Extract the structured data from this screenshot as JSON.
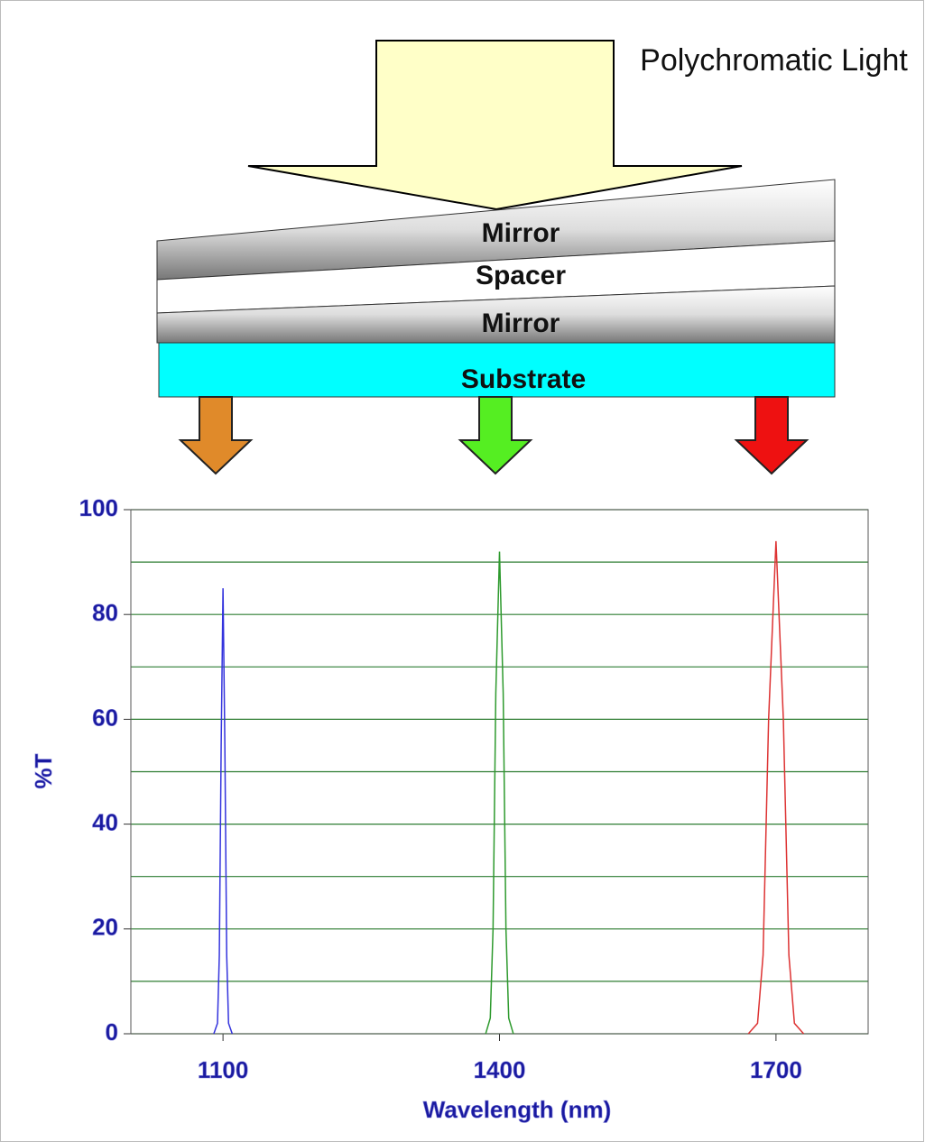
{
  "diagram": {
    "light_label": "Polychromatic Light",
    "layers": [
      "Mirror",
      "Spacer",
      "Mirror",
      "Substrate"
    ]
  },
  "chart_data": {
    "type": "line",
    "x_label": "Wavelength (nm)",
    "y_label": "%T",
    "xlim": [
      1000,
      1800
    ],
    "xticks": [
      1100,
      1400,
      1700
    ],
    "ylim": [
      0,
      100
    ],
    "yticks": [
      0,
      20,
      40,
      60,
      80,
      100
    ],
    "minor_yticks": [
      10,
      30,
      50,
      70,
      90
    ],
    "grid": true,
    "grid_color": "#2e7d32",
    "series": [
      {
        "color": "#3333dd",
        "x": [
          1090,
          1094,
          1096,
          1098,
          1100,
          1102,
          1104,
          1106,
          1110
        ],
        "values": [
          0,
          2,
          15,
          55,
          85,
          55,
          15,
          2,
          0
        ]
      },
      {
        "color": "#2e9a2e",
        "x": [
          1385,
          1390,
          1393,
          1396,
          1400,
          1404,
          1407,
          1410,
          1415
        ],
        "values": [
          0,
          3,
          20,
          65,
          92,
          65,
          20,
          3,
          0
        ]
      },
      {
        "color": "#dd3333",
        "x": [
          1670,
          1680,
          1686,
          1692,
          1700,
          1708,
          1714,
          1720,
          1730
        ],
        "values": [
          0,
          2,
          15,
          60,
          94,
          60,
          15,
          2,
          0
        ]
      }
    ]
  }
}
